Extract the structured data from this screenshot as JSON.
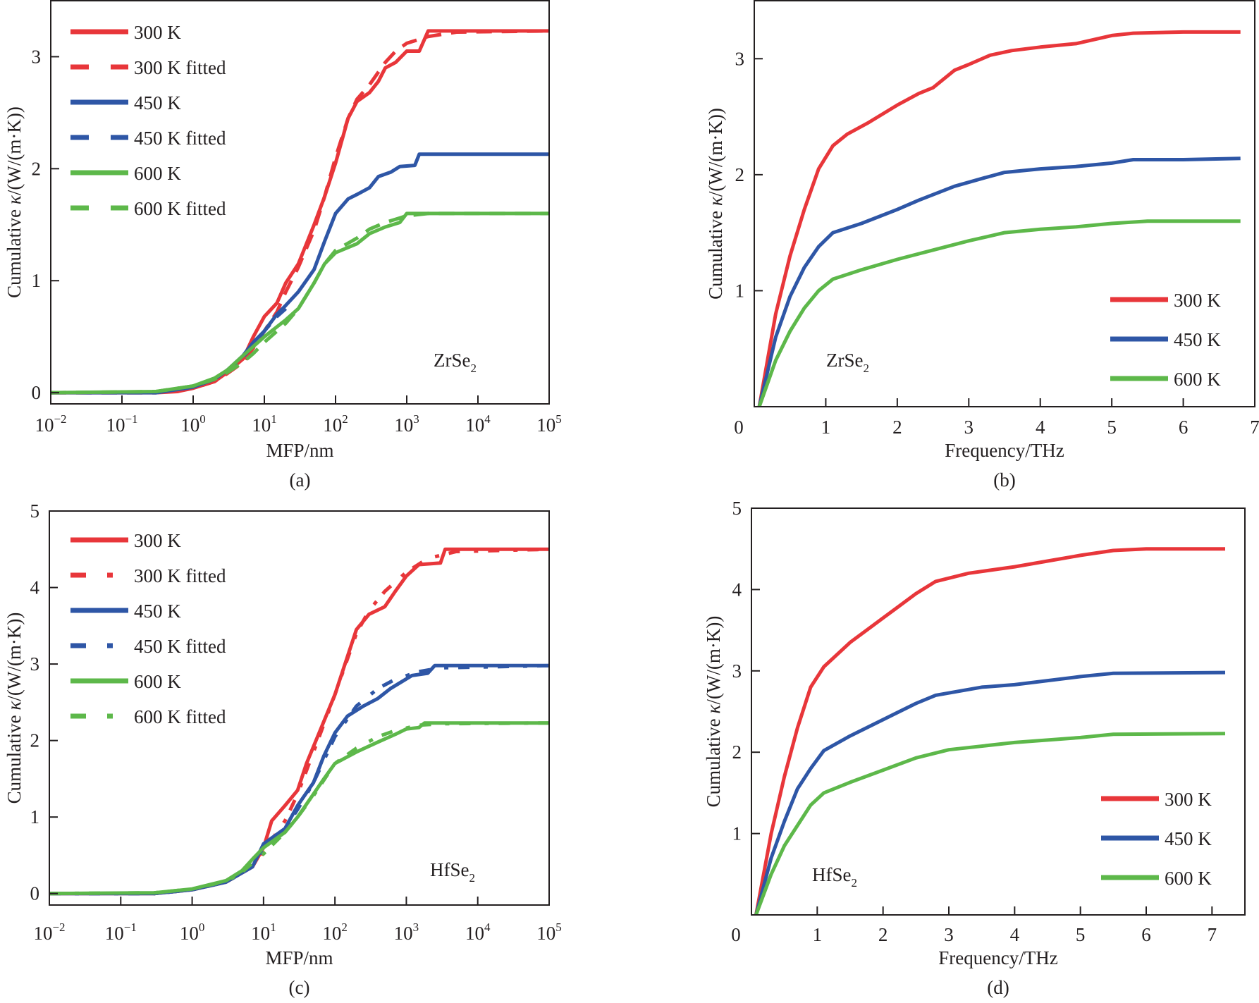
{
  "colors": {
    "300 K": "#e8363a",
    "450 K": "#2e56a6",
    "600 K": "#5db84a",
    "axis": "#231f20"
  },
  "chart_data": [
    {
      "id": "a",
      "type": "line",
      "caption": "(a)",
      "annotation": {
        "base": "ZrSe",
        "sub": "2"
      },
      "xlabel": "MFP/nm",
      "ylabel": {
        "prefix": "Cumulative ",
        "symbol": "κ",
        "suffix": "/(W/(m·K))"
      },
      "xscale": "log",
      "xlim": [
        0.01,
        100000
      ],
      "ylim": [
        -0.1,
        3.5
      ],
      "xticks": [
        {
          "value": 0.01,
          "base": "10",
          "exp": "−2"
        },
        {
          "value": 0.1,
          "base": "10",
          "exp": "−1"
        },
        {
          "value": 1,
          "base": "10",
          "exp": "0"
        },
        {
          "value": 10,
          "base": "10",
          "exp": "1"
        },
        {
          "value": 100,
          "base": "10",
          "exp": "2"
        },
        {
          "value": 1000,
          "base": "10",
          "exp": "3"
        },
        {
          "value": 10000,
          "base": "10",
          "exp": "4"
        },
        {
          "value": 100000,
          "base": "10",
          "exp": "5"
        }
      ],
      "yticks": [
        0,
        1,
        2,
        3
      ],
      "legend_position": "top-left",
      "legend": [
        "300 K",
        "300 K fitted",
        "450 K",
        "450 K fitted",
        "600 K",
        "600 K fitted"
      ],
      "series": [
        {
          "name": "300 K",
          "temp": "300 K",
          "style": "solid",
          "x": [
            0.01,
            0.3,
            0.6,
            1,
            2,
            3,
            5,
            7,
            10,
            15,
            20,
            30,
            50,
            70,
            100,
            150,
            200,
            300,
            400,
            500,
            700,
            1000,
            1500,
            2000,
            100000
          ],
          "y": [
            0,
            0,
            0.01,
            0.04,
            0.1,
            0.18,
            0.3,
            0.5,
            0.68,
            0.8,
            0.98,
            1.15,
            1.5,
            1.75,
            2.05,
            2.45,
            2.6,
            2.68,
            2.78,
            2.9,
            2.95,
            3.05,
            3.05,
            3.23,
            3.23
          ]
        },
        {
          "name": "300 K fitted",
          "temp": "300 K",
          "style": "dashed",
          "x": [
            0.01,
            0.3,
            1,
            2,
            3,
            5,
            7,
            10,
            15,
            20,
            30,
            50,
            70,
            100,
            150,
            200,
            300,
            500,
            700,
            1000,
            2000,
            5000,
            100000
          ],
          "y": [
            0,
            0,
            0.04,
            0.1,
            0.17,
            0.27,
            0.4,
            0.55,
            0.72,
            0.9,
            1.12,
            1.45,
            1.75,
            2.1,
            2.45,
            2.62,
            2.75,
            2.95,
            3.05,
            3.12,
            3.18,
            3.22,
            3.23
          ]
        },
        {
          "name": "450 K",
          "temp": "450 K",
          "style": "solid",
          "x": [
            0.01,
            0.3,
            1,
            2,
            3,
            5,
            7,
            10,
            15,
            20,
            30,
            50,
            70,
            100,
            150,
            200,
            300,
            400,
            600,
            800,
            1300,
            1500,
            100000
          ],
          "y": [
            0,
            0,
            0.05,
            0.12,
            0.2,
            0.33,
            0.45,
            0.55,
            0.7,
            0.78,
            0.9,
            1.1,
            1.35,
            1.6,
            1.73,
            1.77,
            1.83,
            1.93,
            1.97,
            2.02,
            2.03,
            2.13,
            2.13
          ]
        },
        {
          "name": "450 K fitted",
          "temp": "450 K",
          "style": "dashed",
          "x": [
            0.01,
            0.3,
            1,
            2,
            3,
            5,
            7,
            10,
            15,
            20
          ],
          "y": [
            0,
            0,
            0.05,
            0.12,
            0.2,
            0.32,
            0.42,
            0.55,
            0.68,
            0.75
          ]
        },
        {
          "name": "600 K",
          "temp": "600 K",
          "style": "solid",
          "x": [
            0.01,
            0.3,
            1,
            2,
            3,
            5,
            10,
            20,
            30,
            50,
            70,
            100,
            200,
            300,
            500,
            800,
            1000,
            100000
          ],
          "y": [
            0,
            0.01,
            0.06,
            0.13,
            0.2,
            0.33,
            0.5,
            0.65,
            0.75,
            0.98,
            1.15,
            1.25,
            1.33,
            1.42,
            1.48,
            1.52,
            1.6,
            1.6
          ]
        },
        {
          "name": "600 K fitted",
          "temp": "600 K",
          "style": "dashed",
          "x": [
            0.01,
            0.3,
            1,
            2,
            3,
            5,
            7,
            10,
            20,
            30,
            50,
            70,
            100,
            200,
            300,
            500,
            800,
            1000,
            2000,
            100000
          ],
          "y": [
            0,
            0.01,
            0.06,
            0.12,
            0.18,
            0.27,
            0.35,
            0.45,
            0.62,
            0.75,
            0.98,
            1.15,
            1.27,
            1.38,
            1.46,
            1.52,
            1.56,
            1.58,
            1.6,
            1.6
          ]
        }
      ]
    },
    {
      "id": "b",
      "type": "line",
      "caption": "(b)",
      "annotation": {
        "base": "ZrSe",
        "sub": "2"
      },
      "xlabel": "Frequency/THz",
      "ylabel": {
        "prefix": "Cumulative ",
        "symbol": "κ",
        "suffix": "/(W/(m·K))"
      },
      "xscale": "linear",
      "xlim": [
        0,
        7
      ],
      "ylim": [
        0,
        3.5
      ],
      "xticks": [
        {
          "value": 0,
          "label": "0"
        },
        {
          "value": 1,
          "label": "1"
        },
        {
          "value": 2,
          "label": "2"
        },
        {
          "value": 3,
          "label": "3"
        },
        {
          "value": 4,
          "label": "4"
        },
        {
          "value": 5,
          "label": "5"
        },
        {
          "value": 6,
          "label": "6"
        },
        {
          "value": 7,
          "label": "7"
        }
      ],
      "yticks": [
        1,
        2,
        3
      ],
      "legend_position": "bottom-right",
      "legend": [
        "300 K",
        "450 K",
        "600 K"
      ],
      "series": [
        {
          "name": "300 K",
          "temp": "300 K",
          "style": "solid",
          "x": [
            0.07,
            0.3,
            0.5,
            0.7,
            0.9,
            1.1,
            1.3,
            1.6,
            2.0,
            2.3,
            2.5,
            2.8,
            3.0,
            3.3,
            3.6,
            4.0,
            4.5,
            5.0,
            5.3,
            6.0,
            6.8
          ],
          "y": [
            0,
            0.8,
            1.3,
            1.7,
            2.05,
            2.25,
            2.35,
            2.45,
            2.6,
            2.7,
            2.75,
            2.9,
            2.95,
            3.03,
            3.07,
            3.1,
            3.13,
            3.2,
            3.22,
            3.23,
            3.23
          ]
        },
        {
          "name": "450 K",
          "temp": "450 K",
          "style": "solid",
          "x": [
            0.07,
            0.3,
            0.5,
            0.7,
            0.9,
            1.1,
            1.5,
            2.0,
            2.3,
            2.8,
            3.2,
            3.5,
            4.0,
            4.5,
            5.0,
            5.3,
            6.0,
            6.8
          ],
          "y": [
            0,
            0.6,
            0.95,
            1.2,
            1.38,
            1.5,
            1.58,
            1.7,
            1.78,
            1.9,
            1.97,
            2.02,
            2.05,
            2.07,
            2.1,
            2.13,
            2.13,
            2.14
          ]
        },
        {
          "name": "600 K",
          "temp": "600 K",
          "style": "solid",
          "x": [
            0.07,
            0.3,
            0.5,
            0.7,
            0.9,
            1.1,
            1.5,
            2.0,
            2.5,
            3.0,
            3.5,
            4.0,
            4.5,
            5.0,
            5.5,
            6.8
          ],
          "y": [
            0,
            0.4,
            0.65,
            0.85,
            1.0,
            1.1,
            1.18,
            1.27,
            1.35,
            1.43,
            1.5,
            1.53,
            1.55,
            1.58,
            1.6,
            1.6
          ]
        }
      ]
    },
    {
      "id": "c",
      "type": "line",
      "caption": "(c)",
      "annotation": {
        "base": "HfSe",
        "sub": "2"
      },
      "xlabel": "MFP/nm",
      "ylabel": {
        "prefix": "Cumulative ",
        "symbol": "κ",
        "suffix": "/(W/(m·K))"
      },
      "xscale": "log",
      "xlim": [
        0.01,
        100000
      ],
      "ylim": [
        -0.15,
        5
      ],
      "xticks": [
        {
          "value": 0.01,
          "base": "10",
          "exp": "−2"
        },
        {
          "value": 0.1,
          "base": "10",
          "exp": "−1"
        },
        {
          "value": 1,
          "base": "10",
          "exp": "0"
        },
        {
          "value": 10,
          "base": "10",
          "exp": "1"
        },
        {
          "value": 100,
          "base": "10",
          "exp": "2"
        },
        {
          "value": 1000,
          "base": "10",
          "exp": "3"
        },
        {
          "value": 10000,
          "base": "10",
          "exp": "4"
        },
        {
          "value": 100000,
          "base": "10",
          "exp": "5"
        }
      ],
      "yticks": [
        0,
        1,
        2,
        3,
        4,
        5
      ],
      "legend_position": "top-left",
      "legend": [
        "300 K",
        "300 K fitted",
        "450 K",
        "450 K fitted",
        "600 K",
        "600 K fitted"
      ],
      "series": [
        {
          "name": "300 K",
          "temp": "300 K",
          "style": "solid",
          "x": [
            0.01,
            0.3,
            1,
            3,
            7,
            10,
            13,
            20,
            30,
            40,
            60,
            100,
            150,
            200,
            300,
            500,
            700,
            1000,
            1500,
            3000,
            3500,
            100000
          ],
          "y": [
            0,
            0,
            0.05,
            0.15,
            0.35,
            0.6,
            0.95,
            1.15,
            1.35,
            1.7,
            2.1,
            2.6,
            3.1,
            3.45,
            3.65,
            3.75,
            3.95,
            4.15,
            4.3,
            4.32,
            4.5,
            4.5
          ]
        },
        {
          "name": "300 K fitted",
          "temp": "300 K",
          "style": "dashdot",
          "x": [
            0.01,
            0.3,
            1,
            3,
            7,
            10,
            20,
            30,
            50,
            100,
            200,
            300,
            500,
            1000,
            2000,
            5000,
            100000
          ],
          "y": [
            0,
            0,
            0.05,
            0.15,
            0.35,
            0.55,
            0.95,
            1.3,
            1.85,
            2.6,
            3.4,
            3.7,
            3.95,
            4.2,
            4.38,
            4.47,
            4.5
          ]
        },
        {
          "name": "450 K",
          "temp": "450 K",
          "style": "solid",
          "x": [
            0.01,
            0.3,
            1,
            3,
            7,
            10,
            20,
            30,
            50,
            70,
            100,
            150,
            250,
            400,
            600,
            800,
            1200,
            2000,
            2500,
            100000
          ],
          "y": [
            0,
            0,
            0.05,
            0.15,
            0.35,
            0.65,
            0.85,
            1.15,
            1.45,
            1.8,
            2.1,
            2.32,
            2.45,
            2.55,
            2.68,
            2.75,
            2.85,
            2.88,
            2.98,
            2.98
          ]
        },
        {
          "name": "450 K fitted",
          "temp": "450 K",
          "style": "dashdot",
          "x": [
            0.01,
            0.3,
            1,
            3,
            7,
            10,
            20,
            30,
            50,
            100,
            200,
            400,
            700,
            1500,
            3000,
            100000
          ],
          "y": [
            0,
            0,
            0.05,
            0.15,
            0.35,
            0.6,
            0.85,
            1.1,
            1.45,
            2.05,
            2.45,
            2.68,
            2.8,
            2.9,
            2.95,
            2.98
          ]
        },
        {
          "name": "600 K",
          "temp": "600 K",
          "style": "solid",
          "x": [
            0.01,
            0.3,
            1,
            3,
            5,
            7,
            10,
            20,
            30,
            50,
            70,
            100,
            200,
            400,
            700,
            1000,
            1500,
            1800,
            100000
          ],
          "y": [
            0,
            0.01,
            0.06,
            0.17,
            0.3,
            0.45,
            0.6,
            0.8,
            1.0,
            1.3,
            1.5,
            1.7,
            1.85,
            1.98,
            2.08,
            2.15,
            2.17,
            2.23,
            2.23
          ]
        },
        {
          "name": "600 K fitted",
          "temp": "600 K",
          "style": "dashdot",
          "x": [
            0.01,
            0.3,
            1,
            3,
            5,
            7,
            10,
            20,
            30,
            50,
            100,
            200,
            400,
            700,
            1500,
            3000,
            100000
          ],
          "y": [
            0,
            0.01,
            0.06,
            0.16,
            0.28,
            0.4,
            0.52,
            0.8,
            1.0,
            1.28,
            1.7,
            1.9,
            2.05,
            2.13,
            2.2,
            2.22,
            2.23
          ]
        }
      ]
    },
    {
      "id": "d",
      "type": "line",
      "caption": "(d)",
      "annotation": {
        "base": "HfSe",
        "sub": "2"
      },
      "xlabel": "Frequency/THz",
      "ylabel": {
        "prefix": "Cumulative ",
        "symbol": "κ",
        "suffix": "/(W/(m·K))"
      },
      "xscale": "linear",
      "xlim": [
        0,
        7.5
      ],
      "ylim": [
        0,
        5
      ],
      "xticks": [
        {
          "value": 0,
          "label": "0"
        },
        {
          "value": 1,
          "label": "1"
        },
        {
          "value": 2,
          "label": "2"
        },
        {
          "value": 3,
          "label": "3"
        },
        {
          "value": 4,
          "label": "4"
        },
        {
          "value": 5,
          "label": "5"
        },
        {
          "value": 6,
          "label": "6"
        },
        {
          "value": 7,
          "label": "7"
        }
      ],
      "yticks": [
        1,
        2,
        3,
        4,
        5
      ],
      "legend_position": "bottom-right",
      "legend": [
        "300 K",
        "450 K",
        "600 K"
      ],
      "series": [
        {
          "name": "300 K",
          "temp": "300 K",
          "style": "solid",
          "x": [
            0.07,
            0.3,
            0.5,
            0.7,
            0.9,
            1.1,
            1.5,
            2.0,
            2.5,
            2.8,
            3.3,
            4.0,
            4.5,
            5.0,
            5.5,
            6.0,
            7.2
          ],
          "y": [
            0,
            1.0,
            1.7,
            2.3,
            2.8,
            3.05,
            3.35,
            3.65,
            3.95,
            4.1,
            4.2,
            4.28,
            4.35,
            4.42,
            4.48,
            4.5,
            4.5
          ]
        },
        {
          "name": "450 K",
          "temp": "450 K",
          "style": "solid",
          "x": [
            0.07,
            0.3,
            0.5,
            0.7,
            0.9,
            1.1,
            1.5,
            2.0,
            2.5,
            2.8,
            3.5,
            4.0,
            5.0,
            5.5,
            7.2
          ],
          "y": [
            0,
            0.7,
            1.15,
            1.55,
            1.8,
            2.02,
            2.2,
            2.4,
            2.6,
            2.7,
            2.8,
            2.83,
            2.93,
            2.97,
            2.98
          ]
        },
        {
          "name": "600 K",
          "temp": "600 K",
          "style": "solid",
          "x": [
            0.07,
            0.3,
            0.5,
            0.7,
            0.9,
            1.1,
            1.5,
            2.0,
            2.5,
            3.0,
            4.0,
            5.0,
            5.5,
            7.2
          ],
          "y": [
            0,
            0.5,
            0.85,
            1.1,
            1.35,
            1.5,
            1.63,
            1.78,
            1.93,
            2.03,
            2.12,
            2.18,
            2.22,
            2.23
          ]
        }
      ]
    }
  ]
}
